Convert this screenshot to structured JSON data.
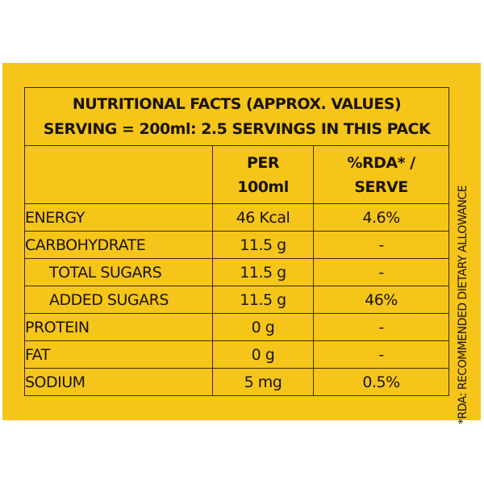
{
  "header": {
    "line1": "NUTRITIONAL FACTS  (APPROX. VALUES)",
    "line2": "SERVING = 200ml: 2.5 SERVINGS IN THIS PACK"
  },
  "columns": {
    "per100_line1": "PER",
    "per100_line2": "100ml",
    "rda_line1": "%RDA* /",
    "rda_line2": "SERVE"
  },
  "rows": [
    {
      "name": "ENERGY",
      "per100": "46 Kcal",
      "rda": "4.6%"
    },
    {
      "name": "CARBOHYDRATE",
      "per100": "11.5 g",
      "rda": "-"
    },
    {
      "name": "TOTAL SUGARS",
      "per100": "11.5 g",
      "rda": "-"
    },
    {
      "name": "ADDED SUGARS",
      "per100": "11.5 g",
      "rda": "46%"
    },
    {
      "name": "PROTEIN",
      "per100": "0 g",
      "rda": "-"
    },
    {
      "name": "FAT",
      "per100": "0 g",
      "rda": "-"
    },
    {
      "name": "SODIUM",
      "per100": "5 mg",
      "rda": "0.5%"
    }
  ],
  "footnote": "*RDA: RECOMMENDED DIETARY ALLOWANCE",
  "colors": {
    "label_background": "#f6c51a",
    "text": "#1a1408"
  }
}
